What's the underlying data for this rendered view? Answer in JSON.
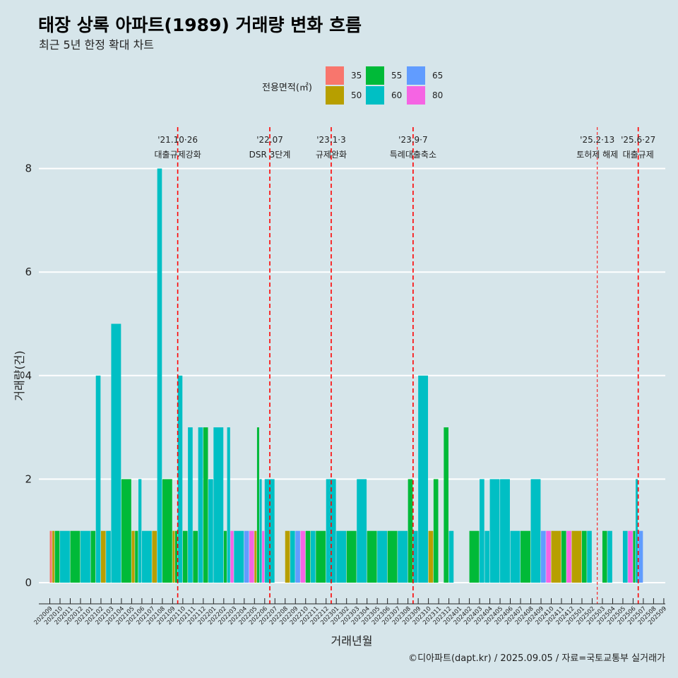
{
  "title": "태장 상록 아파트(1989) 거래량 변화 흐름",
  "subtitle": "최근 5년 한정 확대 차트",
  "caption": "©디아파트(dapt.kr) / 2025.09.05 / 자료=국토교통부 실거래가",
  "legend": {
    "title": "전용면적(㎡)",
    "items": [
      {
        "label": "35",
        "color": "#f8766d"
      },
      {
        "label": "50",
        "color": "#b79f00"
      },
      {
        "label": "55",
        "color": "#00ba38"
      },
      {
        "label": "60",
        "color": "#00bfc4"
      },
      {
        "label": "65",
        "color": "#619cff"
      },
      {
        "label": "80",
        "color": "#f564e3"
      }
    ]
  },
  "chart_data": {
    "type": "bar",
    "xlabel": "거래년월",
    "ylabel": "거래량(건)",
    "ylim": [
      0,
      8
    ],
    "yticks": [
      0,
      2,
      4,
      6,
      8
    ],
    "x_tick_labels": [
      "202009",
      "202010",
      "202011",
      "202012",
      "202101",
      "202102",
      "202103",
      "202104",
      "202105",
      "202106",
      "202107",
      "202108",
      "202109",
      "202110",
      "202111",
      "202112",
      "202201",
      "202202",
      "202203",
      "202204",
      "202205",
      "202206",
      "202207",
      "202208",
      "202209",
      "202210",
      "202211",
      "202212",
      "202301",
      "202302",
      "202303",
      "202304",
      "202305",
      "202306",
      "202307",
      "202308",
      "202309",
      "202310",
      "202311",
      "202312",
      "202401",
      "202402",
      "202403",
      "202404",
      "202405",
      "202406",
      "202407",
      "202408",
      "202409",
      "202410",
      "202411",
      "202412",
      "202501",
      "202502",
      "202503",
      "202504",
      "202505",
      "202506",
      "202507",
      "202508",
      "202509"
    ],
    "bars": [
      {
        "m": 0.0,
        "w": 0.25,
        "v": 1,
        "area": "35"
      },
      {
        "m": 0.25,
        "w": 0.25,
        "v": 1,
        "area": "50"
      },
      {
        "m": 0.5,
        "w": 0.5,
        "v": 1,
        "area": "55"
      },
      {
        "m": 1.0,
        "w": 1.0,
        "v": 1,
        "area": "60"
      },
      {
        "m": 2.0,
        "w": 1.0,
        "v": 1,
        "area": "55"
      },
      {
        "m": 3.0,
        "w": 1.0,
        "v": 1,
        "area": "60"
      },
      {
        "m": 4.0,
        "w": 0.5,
        "v": 1,
        "area": "55"
      },
      {
        "m": 4.5,
        "w": 0.5,
        "v": 4,
        "area": "60"
      },
      {
        "m": 5.0,
        "w": 0.5,
        "v": 1,
        "area": "50"
      },
      {
        "m": 5.5,
        "w": 0.5,
        "v": 1,
        "area": "60"
      },
      {
        "m": 6.0,
        "w": 1.0,
        "v": 5,
        "area": "60"
      },
      {
        "m": 7.0,
        "w": 1.0,
        "v": 2,
        "area": "55"
      },
      {
        "m": 8.0,
        "w": 0.33,
        "v": 1,
        "area": "50"
      },
      {
        "m": 8.33,
        "w": 0.33,
        "v": 1,
        "area": "55"
      },
      {
        "m": 8.66,
        "w": 0.34,
        "v": 2,
        "area": "60"
      },
      {
        "m": 9.0,
        "w": 1.0,
        "v": 1,
        "area": "60"
      },
      {
        "m": 10.0,
        "w": 0.5,
        "v": 1,
        "area": "50"
      },
      {
        "m": 10.5,
        "w": 0.5,
        "v": 8,
        "area": "60"
      },
      {
        "m": 11.0,
        "w": 1.0,
        "v": 2,
        "area": "55"
      },
      {
        "m": 12.0,
        "w": 0.25,
        "v": 1,
        "area": "50"
      },
      {
        "m": 12.25,
        "w": 0.25,
        "v": 1,
        "area": "55"
      },
      {
        "m": 12.5,
        "w": 0.5,
        "v": 4,
        "area": "60"
      },
      {
        "m": 13.0,
        "w": 0.5,
        "v": 1,
        "area": "55"
      },
      {
        "m": 13.5,
        "w": 0.5,
        "v": 3,
        "area": "60"
      },
      {
        "m": 14.0,
        "w": 0.5,
        "v": 1,
        "area": "55"
      },
      {
        "m": 14.5,
        "w": 0.5,
        "v": 3,
        "area": "60"
      },
      {
        "m": 15.0,
        "w": 0.5,
        "v": 3,
        "area": "55"
      },
      {
        "m": 15.5,
        "w": 0.5,
        "v": 2,
        "area": "60"
      },
      {
        "m": 16.0,
        "w": 1.0,
        "v": 3,
        "area": "60"
      },
      {
        "m": 17.0,
        "w": 0.33,
        "v": 1,
        "area": "55"
      },
      {
        "m": 17.33,
        "w": 0.33,
        "v": 3,
        "area": "60"
      },
      {
        "m": 17.66,
        "w": 0.34,
        "v": 1,
        "area": "80"
      },
      {
        "m": 18.0,
        "w": 1.0,
        "v": 1,
        "area": "60"
      },
      {
        "m": 19.0,
        "w": 0.5,
        "v": 1,
        "area": "65"
      },
      {
        "m": 19.5,
        "w": 0.5,
        "v": 1,
        "area": "80"
      },
      {
        "m": 20.0,
        "w": 0.25,
        "v": 1,
        "area": "50"
      },
      {
        "m": 20.25,
        "w": 0.25,
        "v": 3,
        "area": "55"
      },
      {
        "m": 20.5,
        "w": 0.25,
        "v": 2,
        "area": "60"
      },
      {
        "m": 20.75,
        "w": 0.25,
        "v": 1,
        "area": "80"
      },
      {
        "m": 21.0,
        "w": 1.0,
        "v": 2,
        "area": "60"
      },
      {
        "m": 23.0,
        "w": 0.5,
        "v": 1,
        "area": "50"
      },
      {
        "m": 23.5,
        "w": 0.5,
        "v": 1,
        "area": "60"
      },
      {
        "m": 24.0,
        "w": 0.5,
        "v": 1,
        "area": "65"
      },
      {
        "m": 24.5,
        "w": 0.5,
        "v": 1,
        "area": "80"
      },
      {
        "m": 25.0,
        "w": 0.5,
        "v": 1,
        "area": "55"
      },
      {
        "m": 25.5,
        "w": 0.5,
        "v": 1,
        "area": "60"
      },
      {
        "m": 26.0,
        "w": 1.0,
        "v": 1,
        "area": "55"
      },
      {
        "m": 27.0,
        "w": 1.0,
        "v": 2,
        "area": "60"
      },
      {
        "m": 28.0,
        "w": 1.0,
        "v": 1,
        "area": "60"
      },
      {
        "m": 29.0,
        "w": 1.0,
        "v": 1,
        "area": "55"
      },
      {
        "m": 30.0,
        "w": 1.0,
        "v": 2,
        "area": "60"
      },
      {
        "m": 31.0,
        "w": 1.0,
        "v": 1,
        "area": "55"
      },
      {
        "m": 32.0,
        "w": 1.0,
        "v": 1,
        "area": "60"
      },
      {
        "m": 33.0,
        "w": 1.0,
        "v": 1,
        "area": "55"
      },
      {
        "m": 34.0,
        "w": 1.0,
        "v": 1,
        "area": "60"
      },
      {
        "m": 35.0,
        "w": 0.5,
        "v": 2,
        "area": "55"
      },
      {
        "m": 35.5,
        "w": 0.5,
        "v": 1,
        "area": "60"
      },
      {
        "m": 36.0,
        "w": 1.0,
        "v": 4,
        "area": "60"
      },
      {
        "m": 37.0,
        "w": 0.5,
        "v": 1,
        "area": "50"
      },
      {
        "m": 37.5,
        "w": 0.5,
        "v": 2,
        "area": "55"
      },
      {
        "m": 38.5,
        "w": 0.5,
        "v": 3,
        "area": "55"
      },
      {
        "m": 39.0,
        "w": 0.5,
        "v": 1,
        "area": "60"
      },
      {
        "m": 41.0,
        "w": 1.0,
        "v": 1,
        "area": "55"
      },
      {
        "m": 42.0,
        "w": 0.5,
        "v": 2,
        "area": "60"
      },
      {
        "m": 42.5,
        "w": 0.5,
        "v": 1,
        "area": "60"
      },
      {
        "m": 43.0,
        "w": 1.0,
        "v": 2,
        "area": "60"
      },
      {
        "m": 44.0,
        "w": 1.0,
        "v": 2,
        "area": "60"
      },
      {
        "m": 45.0,
        "w": 1.0,
        "v": 1,
        "area": "60"
      },
      {
        "m": 46.0,
        "w": 1.0,
        "v": 1,
        "area": "55"
      },
      {
        "m": 47.0,
        "w": 1.0,
        "v": 2,
        "area": "60"
      },
      {
        "m": 48.0,
        "w": 0.5,
        "v": 1,
        "area": "65"
      },
      {
        "m": 48.5,
        "w": 0.5,
        "v": 1,
        "area": "80"
      },
      {
        "m": 49.0,
        "w": 1.0,
        "v": 1,
        "area": "50"
      },
      {
        "m": 50.0,
        "w": 0.5,
        "v": 1,
        "area": "55"
      },
      {
        "m": 50.5,
        "w": 0.5,
        "v": 1,
        "area": "80"
      },
      {
        "m": 51.0,
        "w": 1.0,
        "v": 1,
        "area": "50"
      },
      {
        "m": 52.0,
        "w": 0.5,
        "v": 1,
        "area": "55"
      },
      {
        "m": 52.5,
        "w": 0.5,
        "v": 1,
        "area": "60"
      },
      {
        "m": 54.0,
        "w": 0.5,
        "v": 1,
        "area": "55"
      },
      {
        "m": 54.5,
        "w": 0.5,
        "v": 1,
        "area": "60"
      },
      {
        "m": 56.0,
        "w": 0.5,
        "v": 1,
        "area": "60"
      },
      {
        "m": 56.5,
        "w": 0.5,
        "v": 1,
        "area": "80"
      },
      {
        "m": 57.0,
        "w": 0.25,
        "v": 1,
        "area": "55"
      },
      {
        "m": 57.25,
        "w": 0.25,
        "v": 2,
        "area": "60"
      },
      {
        "m": 57.5,
        "w": 0.5,
        "v": 1,
        "area": "65"
      }
    ],
    "annotations": [
      {
        "m": 12.5,
        "date": "'21.10·26",
        "label": "대출규제강화",
        "dash": "long"
      },
      {
        "m": 21.5,
        "date": "'22.07",
        "label": "DSR 3단계",
        "dash": "long"
      },
      {
        "m": 27.5,
        "date": "'23.1·3",
        "label": "규제완화",
        "dash": "long"
      },
      {
        "m": 35.5,
        "date": "'23.9·7",
        "label": "특례대출축소",
        "dash": "long"
      },
      {
        "m": 53.5,
        "date": "'25.2·13",
        "label": "토허제 해제",
        "dash": "short"
      },
      {
        "m": 57.5,
        "date": "'25.6·27",
        "label": "대출규제",
        "dash": "long"
      }
    ]
  }
}
